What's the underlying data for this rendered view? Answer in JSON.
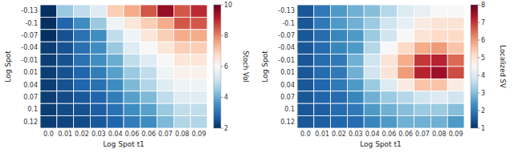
{
  "chart_data": [
    {
      "type": "heatmap",
      "xlabel": "Log Spot t1",
      "ylabel": "Log Spot",
      "categories": [
        "0.0",
        "0.01",
        "0.02",
        "0.03",
        "0.04",
        "0.06",
        "0.06",
        "0.07",
        "0.08",
        "0.09"
      ],
      "y_categories": [
        "-0.13",
        "-0.1",
        "-0.07",
        "-0.04",
        "-0.01",
        "0.01",
        "0.04",
        "0.07",
        "0.1",
        "0.12"
      ],
      "values": [
        [
          2.0,
          4.5,
          5.0,
          5.5,
          7.0,
          7.5,
          8.5,
          9.5,
          8.5,
          9.0
        ],
        [
          2.0,
          2.8,
          3.5,
          4.5,
          5.8,
          6.5,
          7.0,
          7.5,
          8.5,
          8.5
        ],
        [
          2.0,
          2.5,
          3.0,
          3.5,
          5.0,
          5.8,
          6.5,
          7.0,
          7.5,
          7.5
        ],
        [
          2.2,
          2.5,
          3.0,
          3.5,
          4.5,
          5.5,
          6.0,
          6.5,
          7.0,
          7.0
        ],
        [
          2.2,
          2.5,
          3.0,
          3.5,
          4.0,
          5.0,
          5.5,
          6.0,
          6.5,
          6.5
        ],
        [
          2.2,
          2.5,
          2.8,
          3.2,
          3.8,
          4.5,
          5.0,
          5.8,
          6.2,
          6.2
        ],
        [
          2.2,
          2.5,
          2.8,
          3.0,
          3.5,
          4.2,
          4.8,
          5.5,
          5.8,
          5.8
        ],
        [
          2.2,
          2.4,
          2.6,
          2.8,
          3.2,
          3.8,
          4.2,
          5.0,
          5.5,
          5.5
        ],
        [
          2.2,
          2.4,
          2.5,
          2.7,
          3.0,
          3.5,
          3.8,
          4.5,
          5.0,
          5.0
        ],
        [
          2.2,
          2.3,
          2.4,
          2.6,
          2.8,
          3.2,
          3.5,
          4.2,
          4.8,
          4.8
        ]
      ],
      "colorbar_label": "Stoch Vol",
      "colorbar_range": [
        2,
        10
      ],
      "colorbar_ticks": [
        2,
        4,
        6,
        8,
        10
      ]
    },
    {
      "type": "heatmap",
      "xlabel": "Log Spot t1",
      "ylabel": "Log Spot",
      "categories": [
        "0.0",
        "0.01",
        "0.02",
        "0.03",
        "0.04",
        "0.06",
        "0.06",
        "0.07",
        "0.08",
        "0.09"
      ],
      "y_categories": [
        "-0.13",
        "-0.1",
        "-0.07",
        "-0.04",
        "-0.01",
        "0.01",
        "0.04",
        "0.07",
        "0.1",
        "0.12"
      ],
      "values": [
        [
          1.5,
          2.0,
          2.5,
          2.8,
          3.0,
          3.5,
          4.0,
          4.2,
          4.5,
          4.5
        ],
        [
          1.5,
          2.0,
          2.5,
          2.8,
          3.2,
          3.8,
          4.2,
          4.8,
          5.0,
          5.0
        ],
        [
          1.5,
          1.8,
          2.2,
          2.5,
          3.2,
          3.8,
          4.5,
          5.0,
          5.2,
          5.2
        ],
        [
          1.5,
          1.8,
          2.2,
          2.5,
          3.5,
          4.5,
          5.2,
          5.8,
          6.0,
          5.5
        ],
        [
          1.5,
          1.8,
          2.0,
          2.8,
          3.8,
          5.0,
          5.8,
          7.0,
          7.2,
          6.5
        ],
        [
          1.5,
          1.8,
          2.0,
          2.8,
          3.8,
          5.0,
          6.0,
          7.2,
          7.5,
          6.8
        ],
        [
          1.5,
          1.7,
          2.0,
          2.5,
          3.2,
          4.0,
          4.8,
          5.5,
          5.5,
          4.8
        ],
        [
          1.5,
          1.7,
          1.8,
          2.2,
          2.8,
          3.2,
          3.5,
          3.8,
          4.0,
          3.8
        ],
        [
          1.5,
          1.6,
          1.8,
          2.0,
          2.5,
          2.8,
          3.0,
          3.2,
          3.2,
          3.0
        ],
        [
          1.5,
          1.6,
          1.7,
          1.8,
          2.2,
          2.5,
          2.8,
          2.8,
          2.8,
          2.5
        ]
      ],
      "colorbar_label": "Localized SV",
      "colorbar_range": [
        1,
        8
      ],
      "colorbar_ticks": [
        1,
        2,
        3,
        4,
        5,
        6,
        7,
        8
      ]
    }
  ]
}
